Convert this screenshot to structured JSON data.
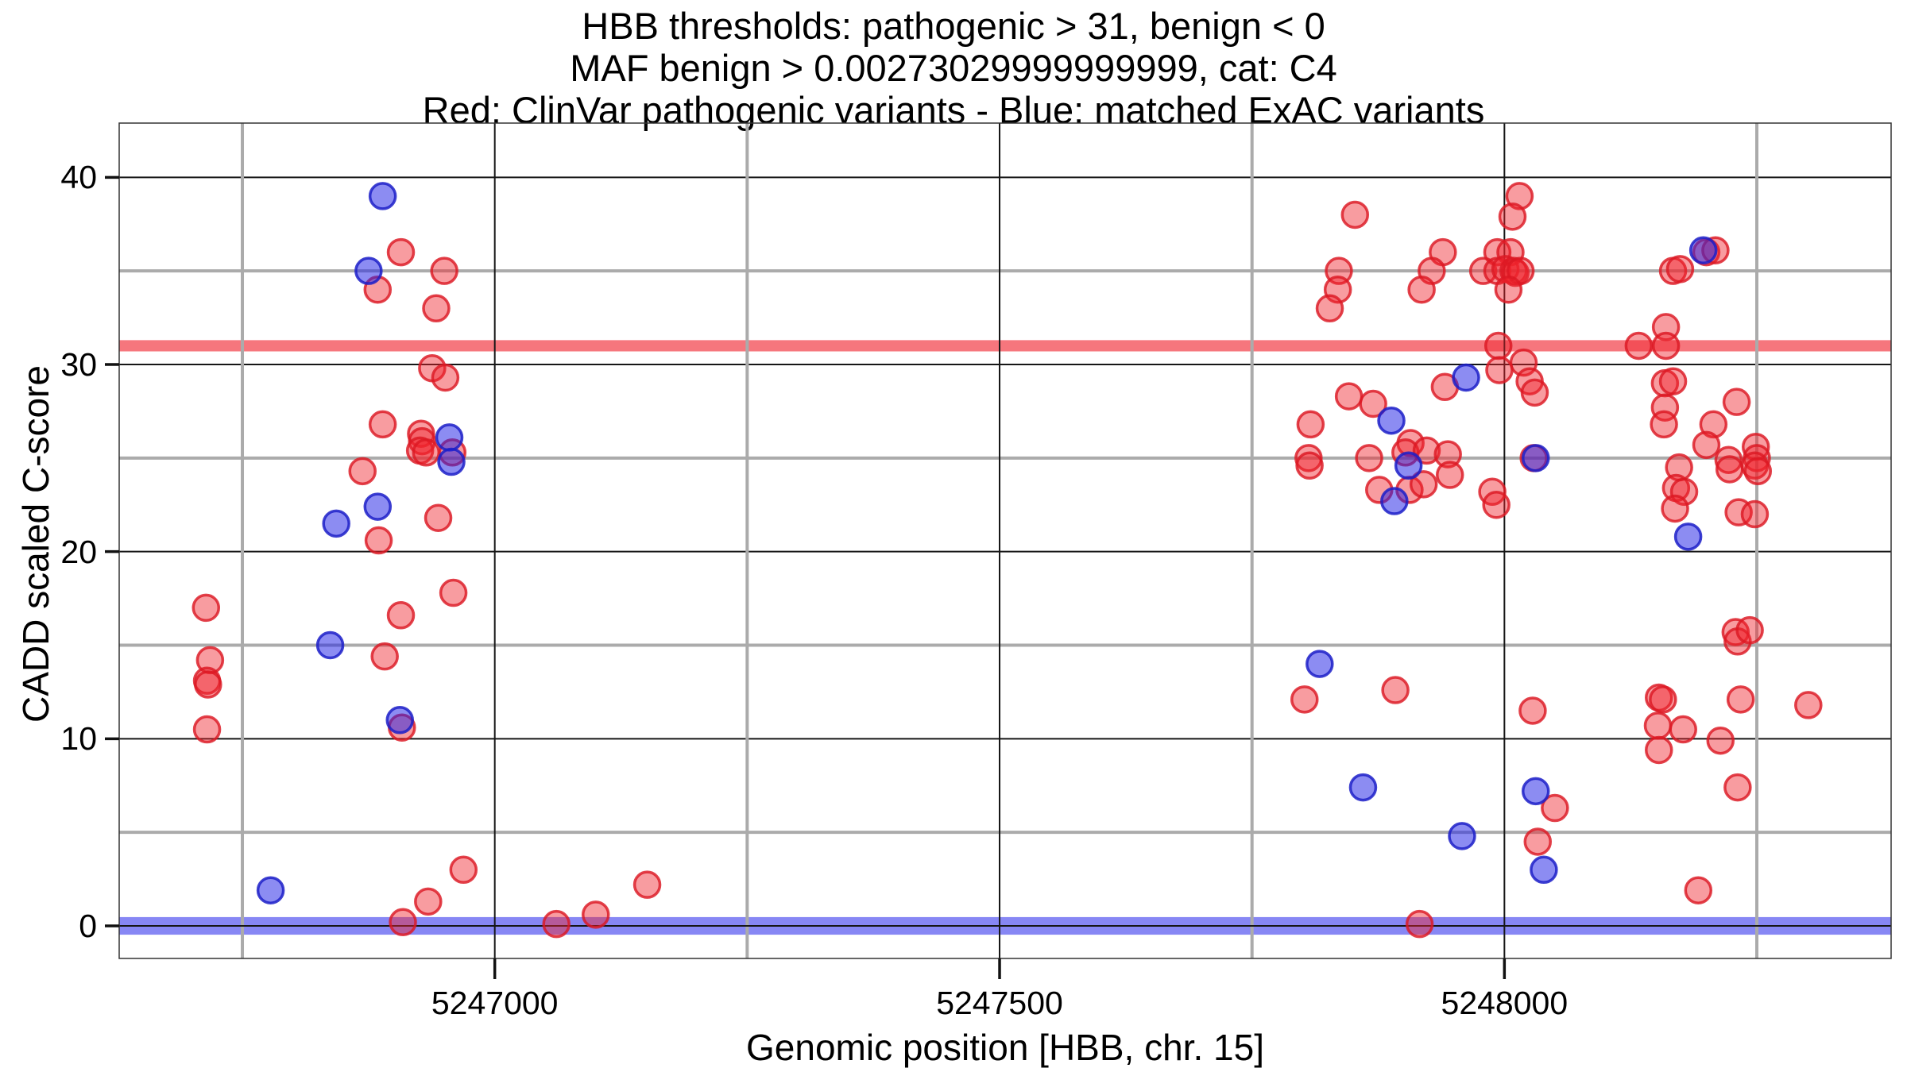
{
  "chart_data": {
    "type": "scatter",
    "title_lines": [
      "HBB thresholds: pathogenic > 31, benign < 0",
      "MAF benign > 0.00273029999999999, cat: C4",
      "Red: ClinVar pathogenic variants - Blue: matched ExAC variants"
    ],
    "xlabel": "Genomic position [HBB, chr. 15]",
    "ylabel": "CADD scaled C-score",
    "x_range": [
      5246628,
      5248383
    ],
    "y_range": [
      -1.74,
      42.9
    ],
    "x_ticks": [
      {
        "value": 5247000,
        "label": "5247000"
      },
      {
        "value": 5247500,
        "label": "5247500"
      },
      {
        "value": 5248000,
        "label": "5248000"
      }
    ],
    "x_minor_ticks": [
      5246750,
      5247250,
      5247750,
      5248250
    ],
    "y_ticks": [
      {
        "value": 0,
        "label": "0"
      },
      {
        "value": 10,
        "label": "10"
      },
      {
        "value": 20,
        "label": "20"
      },
      {
        "value": 30,
        "label": "30"
      },
      {
        "value": 40,
        "label": "40"
      }
    ],
    "y_minor_ticks": [
      5,
      15,
      25,
      35
    ],
    "grid": {
      "major_color": "#161616",
      "minor_color": "#ababab",
      "major_width": 2,
      "minor_width": 4,
      "border_color": "#333333"
    },
    "thresholds": [
      {
        "name": "pathogenic-threshold",
        "y": 31,
        "half_height_units": 0.3,
        "color": "rgba(244,80,88,0.78)"
      },
      {
        "name": "benign-threshold",
        "y": 0,
        "half_height_units": 0.47,
        "color": "rgba(62,62,238,0.62)"
      }
    ],
    "legend_note": "Red: ClinVar pathogenic variants - Blue: matched ExAC variants",
    "series": [
      {
        "name": "ClinVar pathogenic variants",
        "color_fill": "rgba(240,35,45,0.45)",
        "color_stroke": "rgba(220,25,35,0.82)",
        "points": [
          [
            5246714,
            17.0
          ],
          [
            5246718,
            14.2
          ],
          [
            5246715,
            13.1
          ],
          [
            5246716,
            12.9
          ],
          [
            5246715,
            10.5
          ],
          [
            5246907,
            36.0
          ],
          [
            5246884,
            34.0
          ],
          [
            5246950,
            35.0
          ],
          [
            5246942,
            33.0
          ],
          [
            5246938,
            29.8
          ],
          [
            5246951,
            29.3
          ],
          [
            5246889,
            26.8
          ],
          [
            5246927,
            26.3
          ],
          [
            5246928,
            25.9
          ],
          [
            5246926,
            25.4
          ],
          [
            5246932,
            25.3
          ],
          [
            5246958,
            25.3
          ],
          [
            5246869,
            24.3
          ],
          [
            5246944,
            21.8
          ],
          [
            5246885,
            20.6
          ],
          [
            5246959,
            17.8
          ],
          [
            5246907,
            16.6
          ],
          [
            5246891,
            14.4
          ],
          [
            5246908,
            10.6
          ],
          [
            5246969,
            3.0
          ],
          [
            5246934,
            1.3
          ],
          [
            5246909,
            0.2
          ],
          [
            5247061,
            0.1
          ],
          [
            5247100,
            0.6
          ],
          [
            5247151,
            2.2
          ],
          [
            5247916,
            0.1
          ],
          [
            5247852,
            38.0
          ],
          [
            5248015,
            39.0
          ],
          [
            5248008,
            37.9
          ],
          [
            5247939,
            36.0
          ],
          [
            5247993,
            36.0
          ],
          [
            5248006,
            36.0
          ],
          [
            5247979,
            35.0
          ],
          [
            5247993,
            35.0
          ],
          [
            5248001,
            35.1
          ],
          [
            5248009,
            35.0
          ],
          [
            5248011,
            34.9
          ],
          [
            5248016,
            35.0
          ],
          [
            5248004,
            34.0
          ],
          [
            5247928,
            35.0
          ],
          [
            5247918,
            34.0
          ],
          [
            5247836,
            35.0
          ],
          [
            5247835,
            34.0
          ],
          [
            5247827,
            33.0
          ],
          [
            5247994,
            31.0
          ],
          [
            5248019,
            30.1
          ],
          [
            5247995,
            29.7
          ],
          [
            5247941,
            28.8
          ],
          [
            5248025,
            29.1
          ],
          [
            5248030,
            28.5
          ],
          [
            5247846,
            28.3
          ],
          [
            5247870,
            27.9
          ],
          [
            5247808,
            26.8
          ],
          [
            5247907,
            25.8
          ],
          [
            5247902,
            25.3
          ],
          [
            5247923,
            25.4
          ],
          [
            5247944,
            25.2
          ],
          [
            5247806,
            25.0
          ],
          [
            5247807,
            24.6
          ],
          [
            5247866,
            25.0
          ],
          [
            5247946,
            24.1
          ],
          [
            5247876,
            23.3
          ],
          [
            5247906,
            23.3
          ],
          [
            5247920,
            23.6
          ],
          [
            5247988,
            23.2
          ],
          [
            5247992,
            22.5
          ],
          [
            5248029,
            25.0
          ],
          [
            5248200,
            36.0
          ],
          [
            5248209,
            36.1
          ],
          [
            5248167,
            35.0
          ],
          [
            5248174,
            35.1
          ],
          [
            5248160,
            32.0
          ],
          [
            5248133,
            31.0
          ],
          [
            5248160,
            31.0
          ],
          [
            5248159,
            29.0
          ],
          [
            5248167,
            29.1
          ],
          [
            5248159,
            27.7
          ],
          [
            5248158,
            26.8
          ],
          [
            5248230,
            28.0
          ],
          [
            5248207,
            26.8
          ],
          [
            5248200,
            25.7
          ],
          [
            5248249,
            25.6
          ],
          [
            5248250,
            25.0
          ],
          [
            5248248,
            24.6
          ],
          [
            5248251,
            24.3
          ],
          [
            5248222,
            24.9
          ],
          [
            5248223,
            24.4
          ],
          [
            5248173,
            24.5
          ],
          [
            5248170,
            23.4
          ],
          [
            5248178,
            23.2
          ],
          [
            5248169,
            22.3
          ],
          [
            5248232,
            22.1
          ],
          [
            5248248,
            22.0
          ],
          [
            5247802,
            12.1
          ],
          [
            5247892,
            12.6
          ],
          [
            5248028,
            11.5
          ],
          [
            5248050,
            6.3
          ],
          [
            5248033,
            4.5
          ],
          [
            5248229,
            15.7
          ],
          [
            5248231,
            15.2
          ],
          [
            5248243,
            15.8
          ],
          [
            5248153,
            12.2
          ],
          [
            5248157,
            12.1
          ],
          [
            5248234,
            12.1
          ],
          [
            5248301,
            11.8
          ],
          [
            5248152,
            10.7
          ],
          [
            5248177,
            10.5
          ],
          [
            5248214,
            9.9
          ],
          [
            5248153,
            9.4
          ],
          [
            5248231,
            7.4
          ],
          [
            5248192,
            1.9
          ]
        ]
      },
      {
        "name": "matched ExAC variants",
        "color_fill": "rgba(35,35,230,0.52)",
        "color_stroke": "rgba(28,30,200,0.85)",
        "points": [
          [
            5246889,
            39.0
          ],
          [
            5246875,
            35.0
          ],
          [
            5246955,
            26.1
          ],
          [
            5246957,
            24.8
          ],
          [
            5246884,
            22.4
          ],
          [
            5246843,
            21.5
          ],
          [
            5246837,
            15.0
          ],
          [
            5246906,
            11.0
          ],
          [
            5246778,
            1.9
          ],
          [
            5247888,
            27.0
          ],
          [
            5247905,
            24.6
          ],
          [
            5247891,
            22.7
          ],
          [
            5247962,
            29.3
          ],
          [
            5248031,
            25.0
          ],
          [
            5248197,
            36.1
          ],
          [
            5247817,
            14.0
          ],
          [
            5247860,
            7.4
          ],
          [
            5247958,
            4.8
          ],
          [
            5248031,
            7.2
          ],
          [
            5248039,
            3.0
          ],
          [
            5248182,
            20.8
          ]
        ]
      }
    ]
  }
}
